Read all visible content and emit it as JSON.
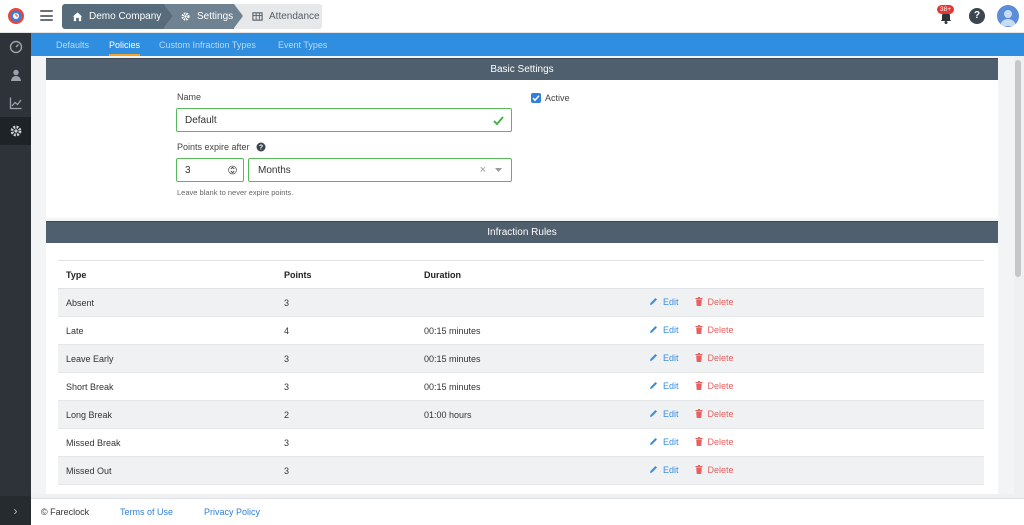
{
  "header": {
    "breadcrumbs": [
      "Demo Company",
      "Settings",
      "Attendance"
    ],
    "notification_count": "38+",
    "help_label": "?"
  },
  "subnav": {
    "tabs": [
      "Defaults",
      "Policies",
      "Custom Infraction Types",
      "Event Types"
    ],
    "active": "Policies"
  },
  "basic_settings": {
    "title": "Basic Settings",
    "name_label": "Name",
    "name_value": "Default",
    "active_label": "Active",
    "expire_label": "Points expire after",
    "expire_value": "3",
    "expire_unit": "Months",
    "expire_clear": "×",
    "hint": "Leave blank to never expire points."
  },
  "infraction_rules": {
    "title": "Infraction Rules",
    "columns": [
      "Type",
      "Points",
      "Duration"
    ],
    "edit_label": "Edit",
    "delete_label": "Delete",
    "rows": [
      {
        "type": "Absent",
        "points": "3",
        "duration": ""
      },
      {
        "type": "Late",
        "points": "4",
        "duration": "00:15 minutes"
      },
      {
        "type": "Leave Early",
        "points": "3",
        "duration": "00:15 minutes"
      },
      {
        "type": "Short Break",
        "points": "3",
        "duration": "00:15 minutes"
      },
      {
        "type": "Long Break",
        "points": "2",
        "duration": "01:00 hours"
      },
      {
        "type": "Missed Break",
        "points": "3",
        "duration": ""
      },
      {
        "type": "Missed Out",
        "points": "3",
        "duration": ""
      }
    ]
  },
  "footer": {
    "copyright": "© Fareclock",
    "terms": "Terms of Use",
    "privacy": "Privacy Policy"
  },
  "sidebar_expand": "›",
  "colors": {
    "primary": "#2f8ee0",
    "header_bar": "#4f5f6d",
    "valid_green": "#5cb85c",
    "edit_blue": "#3c8ddc",
    "delete_red": "#e86060"
  }
}
